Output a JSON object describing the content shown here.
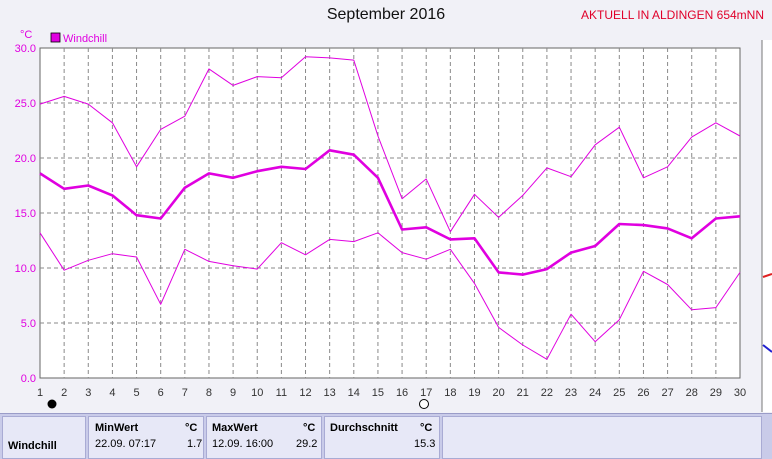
{
  "header": {
    "title": "September 2016",
    "station": "AKTUELL IN ALDINGEN 654mNN"
  },
  "chart_data": {
    "type": "line",
    "ylabel": "°C",
    "ylim": [
      0,
      30
    ],
    "yticks": [
      "0.0",
      "5.0",
      "10.0",
      "15.0",
      "20.0",
      "25.0",
      "30.0"
    ],
    "x": [
      1,
      2,
      3,
      4,
      5,
      6,
      7,
      8,
      9,
      10,
      11,
      12,
      13,
      14,
      15,
      16,
      17,
      18,
      19,
      20,
      21,
      22,
      23,
      24,
      25,
      26,
      27,
      28,
      29,
      30
    ],
    "xticks": [
      "1",
      "2",
      "3",
      "4",
      "5",
      "6",
      "7",
      "8",
      "9",
      "10",
      "11",
      "12",
      "13",
      "14",
      "15",
      "16",
      "17",
      "18",
      "19",
      "20",
      "21",
      "22",
      "23",
      "24",
      "25",
      "26",
      "27",
      "28",
      "29",
      "30"
    ],
    "legend": "Windchill",
    "color": "#e000e0",
    "series": [
      {
        "name": "Windchill",
        "values": [
          18.6,
          17.2,
          17.5,
          16.6,
          14.8,
          14.5,
          17.3,
          18.6,
          18.2,
          18.8,
          19.2,
          19.0,
          20.7,
          20.3,
          18.2,
          13.5,
          13.7,
          12.6,
          12.7,
          9.6,
          9.4,
          9.9,
          11.4,
          12.0,
          14.0,
          13.9,
          13.6,
          12.7,
          14.5,
          14.7
        ]
      },
      {
        "values": [
          24.9,
          25.6,
          24.9,
          23.2,
          19.2,
          22.6,
          23.8,
          28.1,
          26.6,
          27.4,
          27.3,
          29.2,
          29.1,
          28.9,
          22.0,
          16.3,
          18.1,
          13.3,
          16.7,
          14.6,
          16.6,
          19.1,
          18.3,
          21.2,
          22.8,
          18.2,
          19.2,
          21.9,
          23.2,
          22.0
        ]
      },
      {
        "values": [
          13.2,
          9.8,
          10.7,
          11.3,
          11.0,
          6.7,
          11.7,
          10.6,
          10.2,
          9.9,
          12.3,
          11.2,
          12.6,
          12.4,
          13.2,
          11.4,
          10.8,
          11.7,
          8.6,
          4.6,
          3.0,
          1.7,
          5.8,
          3.3,
          5.3,
          9.7,
          8.5,
          6.2,
          6.4,
          9.6
        ]
      }
    ]
  },
  "stats": {
    "min_header": "MinWert",
    "max_header": "MaxWert",
    "avg_header": "Durchschnitt",
    "unit": "°C",
    "row_label": "Windchill",
    "min_time": "22.09.  07:17",
    "min_value": "1.7",
    "max_time": "12.09.  16:00",
    "max_value": "29.2",
    "avg_value": "15.3"
  }
}
